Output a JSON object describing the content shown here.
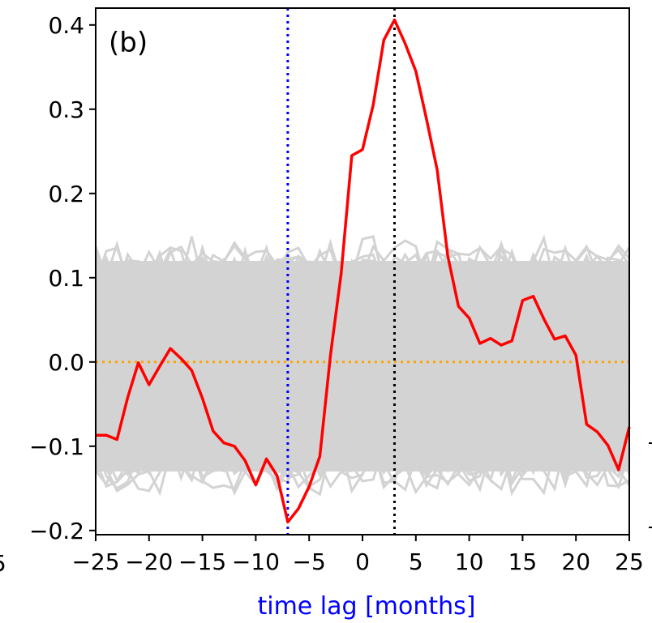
{
  "chart_data": {
    "type": "line",
    "panel_label": "(b)",
    "title": "",
    "xlabel": "time lag  [months]",
    "ylabel": "",
    "xlim": [
      -25,
      25
    ],
    "ylim": [
      -0.205,
      0.42
    ],
    "xticks": [
      -25,
      -20,
      -15,
      -10,
      -5,
      0,
      5,
      10,
      15,
      20,
      25
    ],
    "xtick_labels": [
      "−25",
      "−20",
      "−15",
      "−10",
      "−5",
      "0",
      "5",
      "10",
      "15",
      "20",
      "25"
    ],
    "yticks": [
      -0.2,
      -0.1,
      0.0,
      0.1,
      0.2,
      0.3,
      0.4
    ],
    "ytick_labels": [
      "−0.2",
      "−0.1",
      "0.0",
      "0.1",
      "0.2",
      "0.3",
      "0.4"
    ],
    "left_cut_tick_label": "5",
    "grid": false,
    "series": [
      {
        "role": "observed",
        "color": "#ff0000",
        "x": [
          -25,
          -24,
          -23,
          -22,
          -21,
          -20,
          -19,
          -18,
          -17,
          -16,
          -15,
          -14,
          -13,
          -12,
          -11,
          -10,
          -9,
          -8,
          -7,
          -6,
          -5,
          -4,
          -3,
          -2,
          -1,
          0,
          1,
          2,
          3,
          4,
          5,
          6,
          7,
          8,
          9,
          10,
          11,
          12,
          13,
          14,
          15,
          16,
          17,
          18,
          19,
          20,
          21,
          22,
          23,
          24,
          25
        ],
        "y": [
          -0.087,
          -0.087,
          -0.092,
          -0.042,
          -0.001,
          -0.027,
          -0.005,
          0.016,
          0.004,
          -0.01,
          -0.043,
          -0.082,
          -0.096,
          -0.1,
          -0.117,
          -0.146,
          -0.115,
          -0.135,
          -0.19,
          -0.174,
          -0.148,
          -0.112,
          0.008,
          0.105,
          0.245,
          0.252,
          0.305,
          0.382,
          0.406,
          0.378,
          0.345,
          0.288,
          0.228,
          0.125,
          0.066,
          0.052,
          0.022,
          0.028,
          0.02,
          0.025,
          0.073,
          0.078,
          0.051,
          0.027,
          0.031,
          0.008,
          -0.074,
          -0.083,
          -0.099,
          -0.128,
          -0.077
        ]
      }
    ],
    "reference_lines": [
      {
        "orientation": "horizontal",
        "value": 0.0,
        "color": "#ffa500",
        "style": "dotted"
      },
      {
        "orientation": "vertical",
        "value": -7,
        "color": "#0000ff",
        "style": "dotted"
      },
      {
        "orientation": "vertical",
        "value": 3,
        "color": "#000000",
        "style": "dotted"
      }
    ],
    "surrogate_band": {
      "color": "#d3d3d3",
      "count": 60,
      "lower": -0.13,
      "upper": 0.12,
      "spread": 0.03
    },
    "colors": {
      "xlabel": "#0000ff",
      "axes": "#000000"
    }
  }
}
